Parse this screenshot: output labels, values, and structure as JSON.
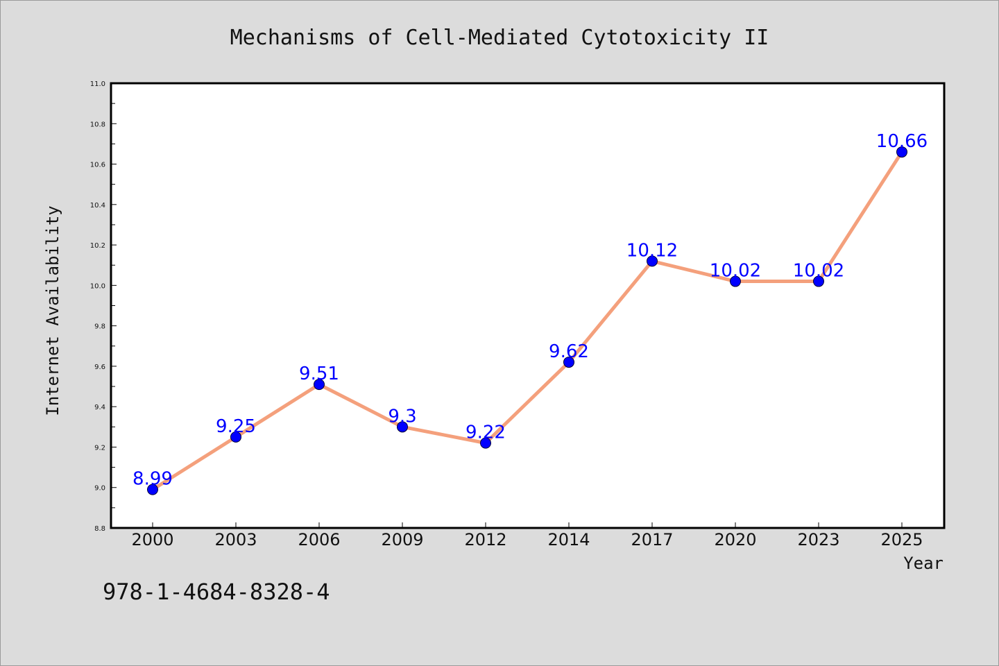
{
  "chart_data": {
    "type": "line",
    "title": "Mechanisms of Cell-Mediated Cytotoxicity II",
    "xlabel": "Year",
    "ylabel": "Internet Availability",
    "categories": [
      "2000",
      "2003",
      "2006",
      "2009",
      "2012",
      "2014",
      "2017",
      "2020",
      "2023",
      "2025"
    ],
    "series": [
      {
        "values": [
          8.99,
          9.25,
          9.51,
          9.3,
          9.22,
          9.62,
          10.12,
          10.02,
          10.02,
          10.66
        ]
      }
    ],
    "data_labels": [
      "8.99",
      "9.25",
      "9.51",
      "9.3",
      "9.22",
      "9.62",
      "10.12",
      "10.02",
      "10.02",
      "10.66"
    ],
    "ylim": [
      8.8,
      11.0
    ],
    "yticks": [
      "8.8",
      "9.0",
      "9.2",
      "9.4",
      "9.6",
      "9.8",
      "10.0",
      "10.2",
      "10.4",
      "10.6",
      "10.8",
      "11.0"
    ],
    "grid": false,
    "legend": "none",
    "colors": {
      "line": "#f4a07c",
      "marker": "#0000ff",
      "label": "#0000ff",
      "background": "#dcdcdc",
      "plot_background": "#ffffff"
    }
  },
  "footer": {
    "isbn": "978-1-4684-8328-4"
  }
}
